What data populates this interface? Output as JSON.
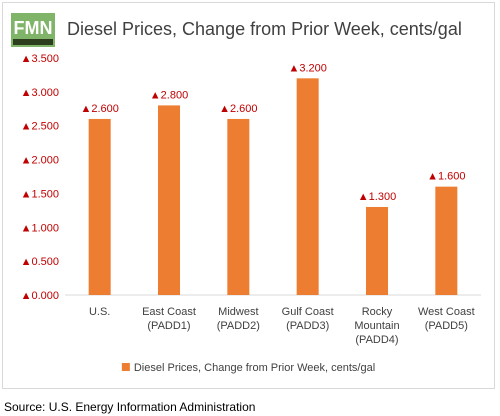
{
  "chart_data": {
    "type": "bar",
    "title": "Diesel Prices, Change from Prior Week, cents/gal",
    "categories": [
      [
        "U.S."
      ],
      [
        "East Coast",
        "(PADD1)"
      ],
      [
        "Midwest",
        "(PADD2)"
      ],
      [
        "Gulf Coast",
        "(PADD3)"
      ],
      [
        "Rocky",
        "Mountain",
        "(PADD4)"
      ],
      [
        "West Coast",
        "(PADD5)"
      ]
    ],
    "series": [
      {
        "name": "Diesel Prices, Change from Prior Week, cents/gal",
        "values": [
          2.6,
          2.8,
          2.6,
          3.2,
          1.3,
          1.6
        ],
        "labels": [
          "▲2.600",
          "▲2.800",
          "▲2.600",
          "▲3.200",
          "▲1.300",
          "▲1.600"
        ],
        "color": "#ed7d31"
      }
    ],
    "yticks": [
      {
        "value": 0.0,
        "label": "▲0.000"
      },
      {
        "value": 0.5,
        "label": "▲0.500"
      },
      {
        "value": 1.0,
        "label": "▲1.000"
      },
      {
        "value": 1.5,
        "label": "▲1.500"
      },
      {
        "value": 2.0,
        "label": "▲2.000"
      },
      {
        "value": 2.5,
        "label": "▲2.500"
      },
      {
        "value": 3.0,
        "label": "▲3.000"
      },
      {
        "value": 3.5,
        "label": "▲3.500"
      }
    ],
    "ylim": [
      0,
      3.5
    ],
    "grid": false,
    "legend_position": "bottom",
    "label_color": "#c00000"
  },
  "source_note": "Source: U.S. Energy Information Administration"
}
